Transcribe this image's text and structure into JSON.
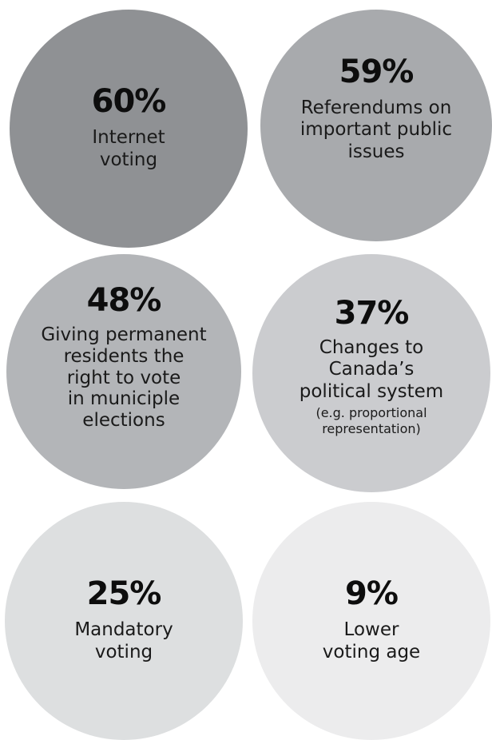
{
  "bubbles": [
    {
      "percent": "60%",
      "lines": [
        "Internet",
        "voting"
      ],
      "color": "#8f9194"
    },
    {
      "percent": "59%",
      "lines": [
        "Referendums on",
        "important public",
        "issues"
      ],
      "color": "#a8aaad"
    },
    {
      "percent": "48%",
      "lines": [
        "Giving permanent",
        "residents the",
        "right to vote",
        "in municiple",
        "elections"
      ],
      "color": "#b3b5b8"
    },
    {
      "percent": "37%",
      "lines": [
        "Changes to",
        "Canada’s",
        "political system"
      ],
      "note_lines": [
        "(e.g. proportional",
        "representation)"
      ],
      "color": "#cbcccf"
    },
    {
      "percent": "25%",
      "lines": [
        "Mandatory",
        "voting"
      ],
      "color": "#dddfe0"
    },
    {
      "percent": "9%",
      "lines": [
        "Lower",
        "voting age"
      ],
      "color": "#ececed"
    }
  ]
}
